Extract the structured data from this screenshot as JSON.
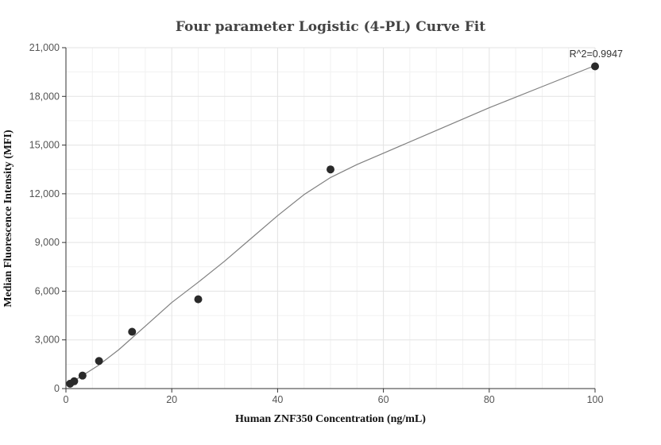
{
  "chart_data": {
    "type": "scatter",
    "title": "Four parameter Logistic (4-PL) Curve Fit",
    "xlabel": "Human ZNF350 Concentration (ng/mL)",
    "ylabel": "Median Fluorescence Intensity (MFI)",
    "xlim": [
      0,
      100
    ],
    "ylim": [
      0,
      21000
    ],
    "x_ticks": [
      0,
      20,
      40,
      60,
      80,
      100
    ],
    "x_tick_labels": [
      "0",
      "20",
      "40",
      "60",
      "80",
      "100"
    ],
    "y_ticks": [
      0,
      3000,
      6000,
      9000,
      12000,
      15000,
      18000,
      21000
    ],
    "y_tick_labels": [
      "0",
      "3,000",
      "6,000",
      "9,000",
      "12,000",
      "15,000",
      "18,000",
      "21,000"
    ],
    "grid": true,
    "points": {
      "x": [
        0.78,
        1.56,
        3.13,
        6.25,
        12.5,
        25,
        50,
        100
      ],
      "y": [
        300,
        450,
        800,
        1700,
        3500,
        5500,
        13500,
        19850
      ]
    },
    "fit_curve": {
      "model": "4-PL",
      "x": [
        0,
        1,
        3,
        6,
        10,
        15,
        20,
        25,
        30,
        35,
        40,
        45,
        50,
        55,
        60,
        70,
        80,
        90,
        100
      ],
      "y": [
        250,
        380,
        780,
        1400,
        2400,
        3850,
        5300,
        6550,
        7850,
        9250,
        10650,
        11950,
        13000,
        13800,
        14500,
        15900,
        17300,
        18600,
        19900
      ]
    },
    "annotation": "R^2=0.9947",
    "colors": {
      "points": "#2a2a2a",
      "curve": "#808080",
      "grid": "#e3e3e3",
      "axis": "#333333"
    }
  }
}
